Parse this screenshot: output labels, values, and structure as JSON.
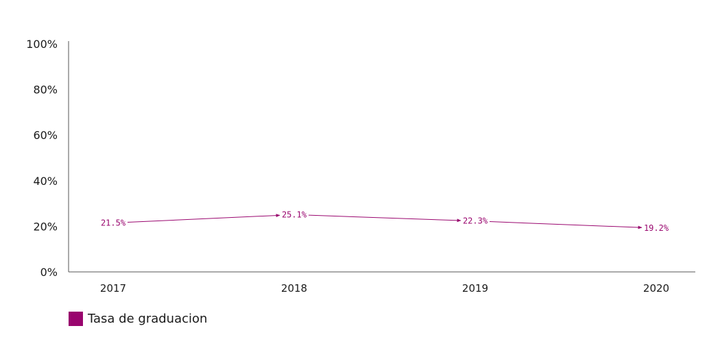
{
  "chart_data": {
    "type": "line",
    "categories": [
      "2017",
      "2018",
      "2019",
      "2020"
    ],
    "series": [
      {
        "name": "Tasa de graduacion",
        "values": [
          21.5,
          25.1,
          22.3,
          19.2
        ],
        "color": "#99056e"
      }
    ],
    "data_labels": [
      "21.5%",
      "25.1%",
      "22.3%",
      "19.2%"
    ],
    "ylim": [
      0,
      100
    ],
    "yticks": [
      0,
      20,
      40,
      60,
      80,
      100
    ],
    "ytick_labels": [
      "0%",
      "20%",
      "40%",
      "60%",
      "80%",
      "100%"
    ],
    "grid": false,
    "legend_position": "bottom-left"
  },
  "legend": {
    "label": "Tasa de graduacion",
    "color": "#99056e"
  }
}
